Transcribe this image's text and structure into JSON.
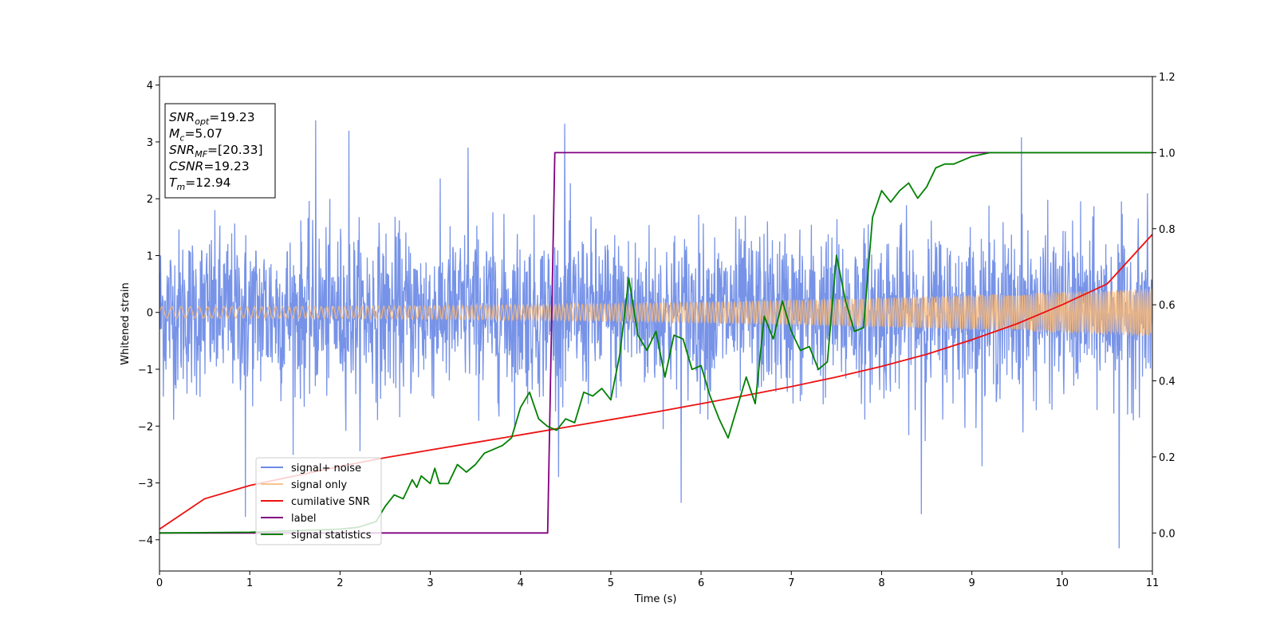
{
  "chart_data": {
    "type": "line",
    "xlabel": "Time (s)",
    "ylabel_left": "Whitened strain",
    "ylabel_right": "",
    "xlim": [
      0,
      11
    ],
    "ylim_left": [
      -4.55,
      4.15
    ],
    "ylim_right": [
      -0.1,
      1.2
    ],
    "xticks": [
      0,
      1,
      2,
      3,
      4,
      5,
      6,
      7,
      8,
      9,
      10,
      11
    ],
    "yticks_left": [
      4,
      3,
      2,
      1,
      0,
      -1,
      -2,
      -3,
      -4
    ],
    "yticks_right": [
      1.2,
      1.0,
      0.8,
      0.6,
      0.4,
      0.2,
      0.0
    ],
    "grid": false,
    "legend_position": "lower-left",
    "colors": {
      "signal_noise": "#6b8ae6",
      "signal_only": "#f5b77a",
      "cumulative_snr": "#ee1111",
      "label": "#800080",
      "signal_statistics": "#008000"
    },
    "annotation_box": {
      "lines": [
        {
          "base": "SNR",
          "sub": "opt",
          "rest": "=19.23"
        },
        {
          "base": "M",
          "sub": "c",
          "rest": "=5.07"
        },
        {
          "base": "SNR",
          "sub": "MF",
          "rest": "=[20.33]"
        },
        {
          "base": "CSNR",
          "sub": "",
          "rest": "=19.23"
        },
        {
          "base": "T",
          "sub": "m",
          "rest": "=12.94"
        }
      ]
    },
    "series": [
      {
        "name": "signal+ noise",
        "axis": "left",
        "description_envelope": {
          "typical_abs": 1.3,
          "max": 3.4,
          "min": -4.2
        },
        "spikes": [
          {
            "x": 1.73,
            "y": 3.38
          },
          {
            "x": 2.1,
            "y": 3.2
          },
          {
            "x": 4.49,
            "y": 3.32
          },
          {
            "x": 0.95,
            "y": -3.6
          },
          {
            "x": 5.78,
            "y": -3.35
          },
          {
            "x": 8.44,
            "y": -3.55
          },
          {
            "x": 10.63,
            "y": -4.15
          },
          {
            "x": 9.55,
            "y": 3.08
          },
          {
            "x": 3.42,
            "y": 2.9
          }
        ]
      },
      {
        "name": "signal only",
        "axis": "left",
        "amplitude_start": 0.1,
        "amplitude_end": 0.42
      },
      {
        "name": "cumilative SNR",
        "axis": "right",
        "x": [
          0,
          0.5,
          1,
          1.5,
          2,
          2.5,
          3,
          3.5,
          4,
          4.5,
          5,
          5.5,
          6,
          6.5,
          7,
          7.5,
          8,
          8.5,
          9,
          9.5,
          10,
          10.5,
          11
        ],
        "y": [
          0.01,
          0.09,
          0.125,
          0.15,
          0.175,
          0.198,
          0.218,
          0.238,
          0.258,
          0.278,
          0.298,
          0.318,
          0.34,
          0.362,
          0.385,
          0.41,
          0.438,
          0.47,
          0.508,
          0.55,
          0.6,
          0.655,
          0.785
        ]
      },
      {
        "name": "label",
        "axis": "right",
        "x": [
          0,
          4.3,
          4.38,
          11
        ],
        "y": [
          0,
          0,
          1,
          1
        ]
      },
      {
        "name": "signal statistics",
        "axis": "right",
        "x": [
          0,
          1,
          1.5,
          2,
          2.2,
          2.4,
          2.5,
          2.6,
          2.7,
          2.8,
          2.85,
          2.9,
          3.0,
          3.05,
          3.1,
          3.2,
          3.3,
          3.35,
          3.4,
          3.5,
          3.6,
          3.7,
          3.8,
          3.9,
          4.0,
          4.1,
          4.2,
          4.3,
          4.4,
          4.5,
          4.6,
          4.7,
          4.8,
          4.9,
          5.0,
          5.1,
          5.2,
          5.3,
          5.4,
          5.5,
          5.6,
          5.7,
          5.8,
          5.9,
          6.0,
          6.1,
          6.2,
          6.3,
          6.4,
          6.5,
          6.6,
          6.7,
          6.8,
          6.9,
          7.0,
          7.1,
          7.2,
          7.3,
          7.4,
          7.5,
          7.6,
          7.7,
          7.8,
          7.9,
          8.0,
          8.1,
          8.2,
          8.3,
          8.4,
          8.5,
          8.6,
          8.7,
          8.8,
          8.9,
          9.0,
          9.2,
          9.5,
          10,
          10.5,
          11
        ],
        "y": [
          0.0,
          0.002,
          0.006,
          0.01,
          0.015,
          0.03,
          0.07,
          0.1,
          0.09,
          0.14,
          0.12,
          0.15,
          0.13,
          0.17,
          0.13,
          0.13,
          0.18,
          0.17,
          0.16,
          0.18,
          0.21,
          0.22,
          0.23,
          0.25,
          0.33,
          0.37,
          0.3,
          0.28,
          0.27,
          0.3,
          0.29,
          0.37,
          0.36,
          0.38,
          0.35,
          0.47,
          0.67,
          0.52,
          0.48,
          0.53,
          0.41,
          0.52,
          0.51,
          0.43,
          0.44,
          0.36,
          0.3,
          0.25,
          0.33,
          0.41,
          0.34,
          0.57,
          0.51,
          0.61,
          0.53,
          0.48,
          0.49,
          0.43,
          0.45,
          0.73,
          0.61,
          0.53,
          0.54,
          0.83,
          0.9,
          0.87,
          0.9,
          0.92,
          0.88,
          0.91,
          0.96,
          0.97,
          0.97,
          0.98,
          0.99,
          1.0,
          1.0,
          1.0,
          1.0,
          1.0
        ]
      }
    ],
    "legend": [
      {
        "label": "signal+ noise",
        "color": "#6b8ae6"
      },
      {
        "label": "signal only",
        "color": "#f5c48c"
      },
      {
        "label": "cumilative SNR",
        "color": "#ee1111"
      },
      {
        "label": "label",
        "color": "#800080"
      },
      {
        "label": "signal statistics",
        "color": "#008000"
      }
    ]
  }
}
